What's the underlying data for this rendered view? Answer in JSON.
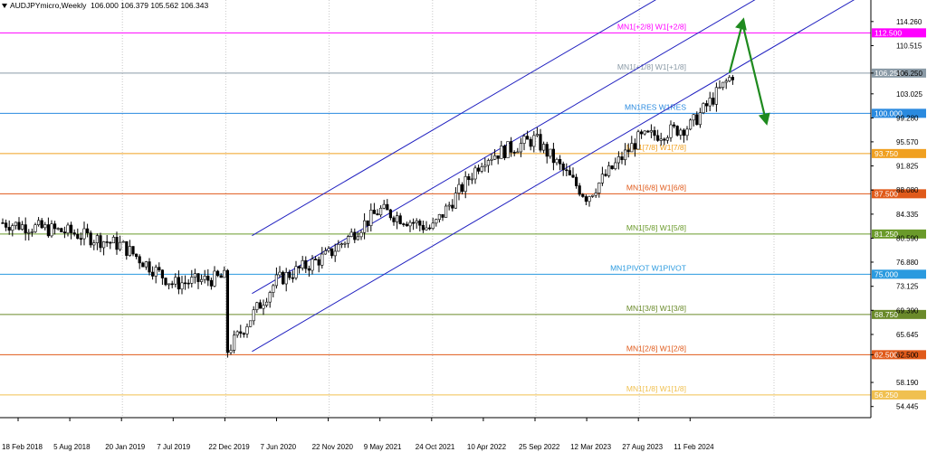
{
  "header": {
    "symbol": "AUDJPYmicro,Weekly",
    "open": "106.000",
    "high": "106.379",
    "low": "105.562",
    "close": "106.343"
  },
  "chart_data": {
    "type": "candlestick",
    "timeframe": "Weekly",
    "ylim": [
      53.0,
      116.2
    ],
    "grid": "vertical dotted",
    "y_ticks": [
      "114.260",
      "110.515",
      "106.250",
      "103.025",
      "99.280",
      "95.570",
      "91.825",
      "88.080",
      "84.335",
      "80.590",
      "76.880",
      "73.125",
      "69.390",
      "65.645",
      "62.500",
      "58.190",
      "54.445"
    ],
    "x_ticks": [
      "18 Feb 2018",
      "5 Aug 2018",
      "20 Jan 2019",
      "7 Jul 2019",
      "22 Dec 2019",
      "7 Jun 2020",
      "22 Nov 2020",
      "9 May 2021",
      "24 Oct 2021",
      "10 Apr 2022",
      "25 Sep 2022",
      "12 Mar 2023",
      "27 Aug 2023",
      "11 Feb 2024"
    ],
    "levels": [
      {
        "label": "MN1[+2/8] W1[+2/8]",
        "price": 112.5,
        "tag": "112.500",
        "color": "#ff00ff"
      },
      {
        "label": "MN1[+1/8] W1[+1/8]",
        "price": 106.25,
        "tag": "106.250",
        "color": "#8a9aa6"
      },
      {
        "label": "MN1RES W1RES",
        "price": 100.0,
        "tag": "100.000",
        "color": "#2a8adf"
      },
      {
        "label": "MN1[7/8] W1[7/8]",
        "price": 93.75,
        "tag": "93.750",
        "color": "#f0a020"
      },
      {
        "label": "MN1[6/8] W1[6/8]",
        "price": 87.5,
        "tag": "87.500",
        "color": "#e05a1a"
      },
      {
        "label": "MN1[5/8] W1[5/8]",
        "price": 81.25,
        "tag": "81.250",
        "color": "#6a9a2a"
      },
      {
        "label": "MN1PIVOT W1PIVOT",
        "price": 75.0,
        "tag": "75.000",
        "color": "#2a9adf"
      },
      {
        "label": "MN1[3/8] W1[3/8]",
        "price": 68.75,
        "tag": "68.750",
        "color": "#6a8a2a"
      },
      {
        "label": "MN1[2/8] W1[2/8]",
        "price": 62.5,
        "tag": "62.500",
        "color": "#e05a1a"
      },
      {
        "label": "MN1[1/8] W1[1/8]",
        "price": 56.25,
        "tag": "56.250",
        "color": "#f0c050"
      }
    ],
    "waypoints": [
      [
        "18 Feb 2018",
        83.0
      ],
      [
        "5 Aug 2018",
        81.5
      ],
      [
        "20 Jan 2019",
        79.5
      ],
      [
        "7 Jul 2019",
        73.5
      ],
      [
        "22 Dec 2019",
        74.5
      ],
      [
        "22 Dec 2019",
        62.5
      ],
      [
        "7 Jun 2020",
        74.0
      ],
      [
        "22 Nov 2020",
        78.0
      ],
      [
        "9 May 2021",
        85.0
      ],
      [
        "24 Oct 2021",
        82.0
      ],
      [
        "10 Apr 2022",
        93.0
      ],
      [
        "25 Sep 2022",
        96.0
      ],
      [
        "12 Mar 2023",
        87.0
      ],
      [
        "27 Aug 2023",
        96.0
      ],
      [
        "11 Feb 2024",
        98.0
      ],
      [
        "last",
        106.3
      ]
    ],
    "channel": {
      "start": "22 Dec 2019",
      "upper_start": 81.0,
      "middle_start": 72.0,
      "lower_start": 63.0
    },
    "projection": [
      [
        "last",
        106.3
      ],
      [
        "next",
        114.0
      ],
      [
        "next2",
        99.0
      ]
    ]
  }
}
